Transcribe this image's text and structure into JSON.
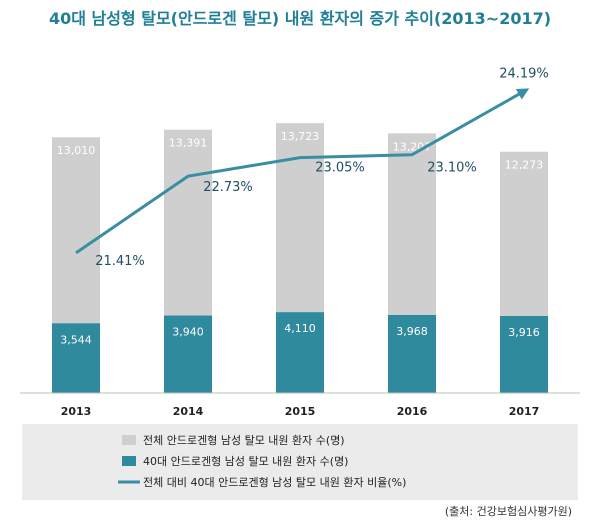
{
  "title": "40대 남성형 탈모(안드로겐 탈모) 내원 환자의 증가 추이(2013~2017)",
  "source": "(출처: 건강보험심사평가원)",
  "colors": {
    "title": "#1f7f96",
    "total_bar": "#cfcfcf",
    "forty_bar": "#2f8a9e",
    "line": "#3a8ea3",
    "legend_bg": "#ebebeb"
  },
  "chart_data": {
    "type": "bar",
    "categories": [
      "2013",
      "2014",
      "2015",
      "2016",
      "2017"
    ],
    "series": [
      {
        "name": "전체 안드로겐형 남성 탈모 내원 환자 수(명)",
        "kind": "bar",
        "values": [
          13010,
          13391,
          13723,
          13207,
          12273
        ]
      },
      {
        "name": "40대 안드로겐형 남성 탈모 내원 환자 수(명)",
        "kind": "bar",
        "values": [
          3544,
          3940,
          4110,
          3968,
          3916
        ]
      },
      {
        "name": "전체 대비 40대 안드로겐형 남성 탈모 내원 환자 비율(%)",
        "kind": "line",
        "values": [
          21.41,
          22.73,
          23.05,
          23.1,
          24.19
        ]
      }
    ],
    "value_labels_total": [
      "13,010",
      "13,391",
      "13,723",
      "13,207",
      "12,273"
    ],
    "value_labels_forty": [
      "3,544",
      "3,940",
      "4,110",
      "3,968",
      "3,916"
    ],
    "rate_labels": [
      "21.41%",
      "22.73%",
      "23.05%",
      "23.10%",
      "24.19%"
    ],
    "grid": false,
    "legend": "bottom"
  },
  "legend": [
    {
      "label": "전체 안드로겐형 남성 탈모 내원 환자 수(명)",
      "icon": "gray-square"
    },
    {
      "label": "40대 안드로겐형 남성 탈모 내원 환자 수(명)",
      "icon": "teal-square"
    },
    {
      "label": "전체 대비 40대 안드로겐형 남성 탈모 내원 환자 비율(%)",
      "icon": "teal-line"
    }
  ]
}
